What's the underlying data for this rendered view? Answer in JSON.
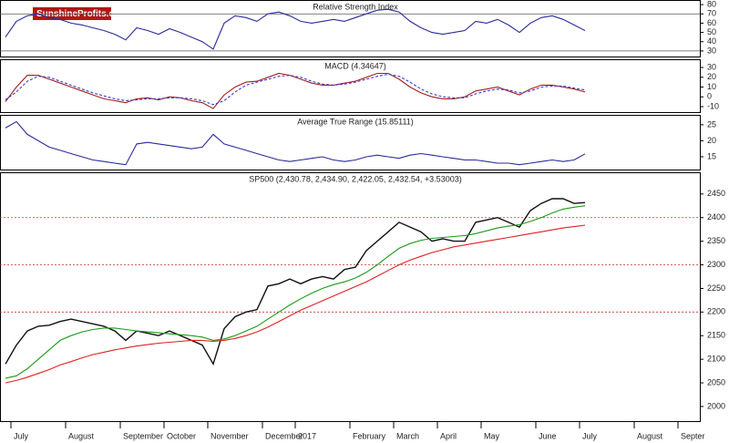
{
  "logo": "SunshineProfits.com",
  "chart_data": [
    {
      "type": "line",
      "title": "Relative Strength Index",
      "ylim": [
        24,
        85
      ],
      "yticks": [
        30,
        40,
        50,
        60,
        70,
        80
      ],
      "hlines": [
        30,
        70
      ],
      "series": [
        {
          "color": "#2a2a9a",
          "values": [
            45,
            62,
            68,
            70,
            66,
            64,
            60,
            58,
            55,
            52,
            48,
            42,
            55,
            52,
            48,
            54,
            50,
            45,
            40,
            32,
            60,
            68,
            66,
            62,
            70,
            72,
            68,
            62,
            60,
            62,
            64,
            62,
            66,
            70,
            74,
            75,
            72,
            62,
            55,
            50,
            48,
            50,
            52,
            62,
            60,
            64,
            58,
            50,
            60,
            66,
            68,
            64,
            58,
            52
          ]
        }
      ]
    },
    {
      "type": "line",
      "title": "MACD (4.34647)",
      "ylim": [
        -15.6,
        38.4
      ],
      "yticks": [
        -10,
        0,
        10,
        20,
        30
      ],
      "series": [
        {
          "color": "#a02020",
          "values": [
            -5,
            10,
            22,
            22,
            18,
            14,
            10,
            6,
            2,
            -2,
            -4,
            -6,
            -2,
            -1,
            -3,
            0,
            -1,
            -4,
            -6,
            -12,
            2,
            10,
            15,
            16,
            20,
            24,
            22,
            18,
            14,
            12,
            12,
            14,
            16,
            20,
            24,
            24,
            18,
            10,
            4,
            0,
            -2,
            -2,
            0,
            6,
            8,
            10,
            6,
            2,
            8,
            12,
            12,
            10,
            8,
            5
          ]
        },
        {
          "color": "#3a3ad0",
          "dashed": true,
          "values": [
            -3,
            5,
            16,
            21,
            20,
            16,
            12,
            8,
            4,
            1,
            -2,
            -4,
            -3,
            -2,
            -2,
            -1,
            -1,
            -2,
            -4,
            -8,
            -4,
            5,
            12,
            15,
            18,
            21,
            22,
            20,
            16,
            13,
            12,
            13,
            15,
            18,
            21,
            23,
            21,
            15,
            8,
            3,
            0,
            -1,
            -1,
            3,
            6,
            8,
            7,
            4,
            6,
            10,
            11,
            11,
            9,
            7
          ]
        }
      ]
    },
    {
      "type": "line",
      "title": "Average True Range (15.85111)",
      "ylim": [
        11,
        28.1
      ],
      "yticks": [
        15,
        20,
        25
      ],
      "series": [
        {
          "color": "#2a2a9a",
          "values": [
            24,
            26,
            22,
            20,
            18,
            17,
            16,
            15,
            14,
            13.5,
            13,
            12.5,
            19,
            19.5,
            19,
            18.5,
            18,
            17.5,
            18,
            22,
            19,
            18,
            17,
            16,
            15,
            14,
            13.5,
            14,
            14.5,
            15,
            14,
            13.5,
            14,
            15,
            15.5,
            15,
            14.5,
            15.5,
            16,
            15.5,
            15,
            14.5,
            14,
            14,
            13.5,
            13,
            13,
            12.5,
            13,
            13.5,
            14,
            13.5,
            14,
            15.9
          ]
        }
      ]
    },
    {
      "type": "line",
      "title": "SP500 (2,430.78, 2,434.90, 2,422.05, 2,432.54, +3.53003)",
      "ylim": [
        1969,
        2496
      ],
      "yticks": [
        2000,
        2050,
        2100,
        2150,
        2200,
        2250,
        2300,
        2350,
        2400,
        2450
      ],
      "hlines": [
        2200,
        2300,
        2400
      ],
      "categories": [
        null,
        "July",
        null,
        null,
        null,
        null,
        "August",
        null,
        null,
        null,
        null,
        "September",
        null,
        null,
        null,
        "October",
        null,
        null,
        null,
        "November",
        null,
        null,
        null,
        null,
        "December",
        null,
        null,
        "2017",
        null,
        null,
        null,
        null,
        "February",
        null,
        null,
        null,
        "March",
        null,
        null,
        null,
        "April",
        null,
        null,
        null,
        "May",
        null,
        null,
        null,
        null,
        "June",
        null,
        null,
        null,
        "July",
        null,
        null,
        null,
        null,
        "August",
        null,
        null,
        null,
        "Septer",
        null
      ],
      "series": [
        {
          "color": "#111111",
          "values": [
            2090,
            2130,
            2160,
            2170,
            2172,
            2180,
            2185,
            2180,
            2175,
            2170,
            2160,
            2140,
            2160,
            2155,
            2150,
            2160,
            2150,
            2140,
            2130,
            2090,
            2165,
            2190,
            2200,
            2205,
            2255,
            2260,
            2270,
            2260,
            2270,
            2275,
            2270,
            2290,
            2295,
            2330,
            2350,
            2370,
            2390,
            2380,
            2370,
            2350,
            2355,
            2350,
            2350,
            2390,
            2395,
            2400,
            2390,
            2380,
            2415,
            2430,
            2440,
            2440,
            2430,
            2432,
            null,
            null,
            null,
            null,
            null,
            null,
            null,
            null,
            null,
            null
          ]
        },
        {
          "color": "#1a9a1a",
          "values": [
            2060,
            2065,
            2080,
            2100,
            2120,
            2140,
            2150,
            2158,
            2163,
            2166,
            2166,
            2163,
            2160,
            2158,
            2156,
            2154,
            2152,
            2150,
            2147,
            2140,
            2143,
            2150,
            2160,
            2170,
            2185,
            2200,
            2215,
            2228,
            2240,
            2250,
            2258,
            2264,
            2272,
            2284,
            2300,
            2318,
            2335,
            2345,
            2352,
            2356,
            2358,
            2360,
            2362,
            2366,
            2372,
            2378,
            2382,
            2385,
            2392,
            2400,
            2410,
            2418,
            2422,
            2425,
            null,
            null,
            null,
            null,
            null,
            null,
            null,
            null,
            null,
            null
          ]
        },
        {
          "color": "#e02020",
          "values": [
            2050,
            2055,
            2062,
            2070,
            2078,
            2088,
            2095,
            2103,
            2110,
            2115,
            2120,
            2124,
            2128,
            2131,
            2134,
            2136,
            2138,
            2140,
            2140,
            2138,
            2140,
            2144,
            2150,
            2158,
            2168,
            2180,
            2192,
            2204,
            2214,
            2224,
            2234,
            2244,
            2254,
            2264,
            2276,
            2288,
            2300,
            2310,
            2318,
            2326,
            2332,
            2338,
            2342,
            2346,
            2350,
            2354,
            2358,
            2362,
            2366,
            2370,
            2374,
            2378,
            2381,
            2384,
            null,
            null,
            null,
            null,
            null,
            null,
            null,
            null,
            null,
            null
          ]
        }
      ]
    }
  ]
}
